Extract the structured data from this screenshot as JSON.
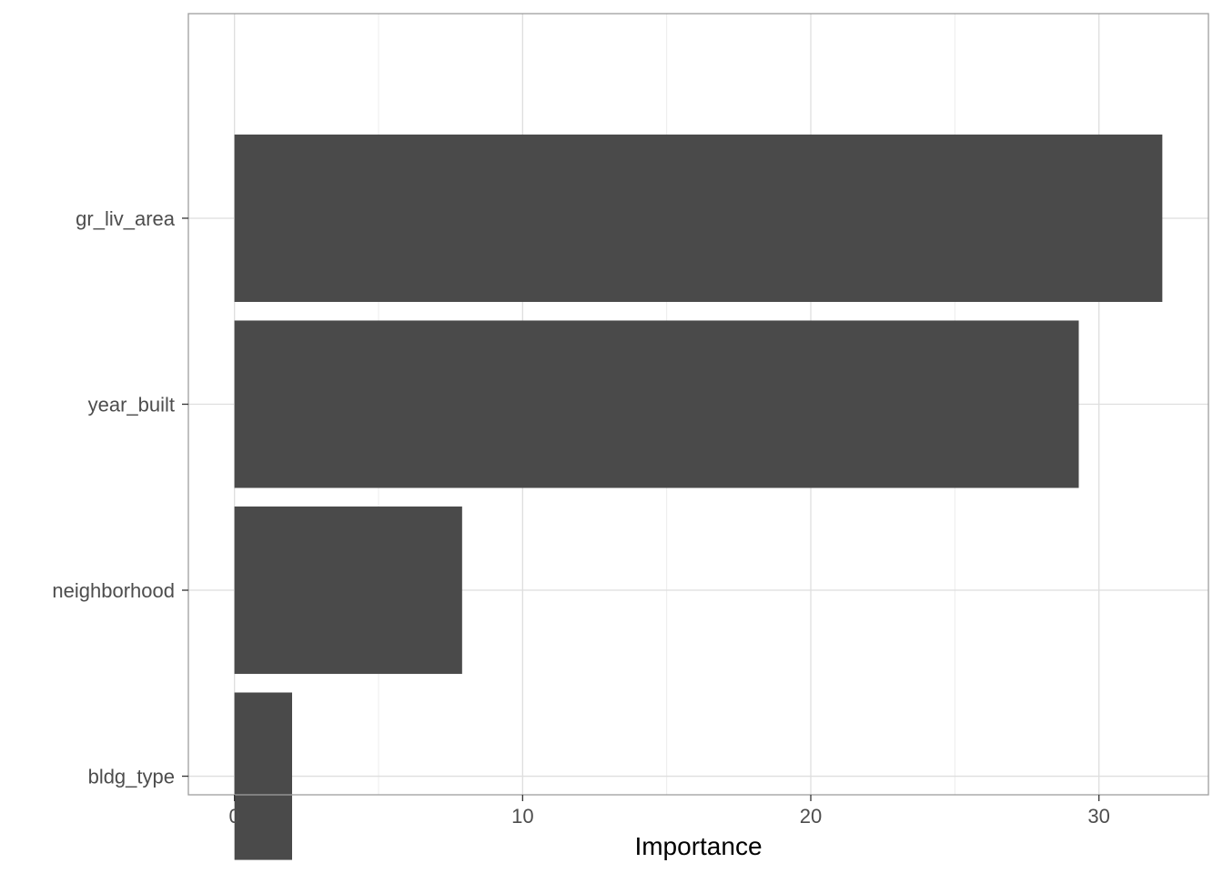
{
  "chart_data": {
    "type": "bar",
    "orientation": "horizontal",
    "categories": [
      "gr_liv_area",
      "year_built",
      "neighborhood",
      "bldg_type"
    ],
    "values": [
      32.2,
      29.3,
      7.9,
      2.0
    ],
    "xlabel": "Importance",
    "ylabel": "",
    "xlim": [
      -1.6,
      33.8
    ],
    "x_ticks": [
      0,
      10,
      20,
      30
    ],
    "x_tick_labels": [
      "0",
      "10",
      "20",
      "30"
    ],
    "grid": true,
    "bar_color": "#4a4a4a",
    "grid_major_color": "#dedede",
    "grid_minor_color": "#ececec",
    "panel_border_color": "#9e9e9e"
  }
}
